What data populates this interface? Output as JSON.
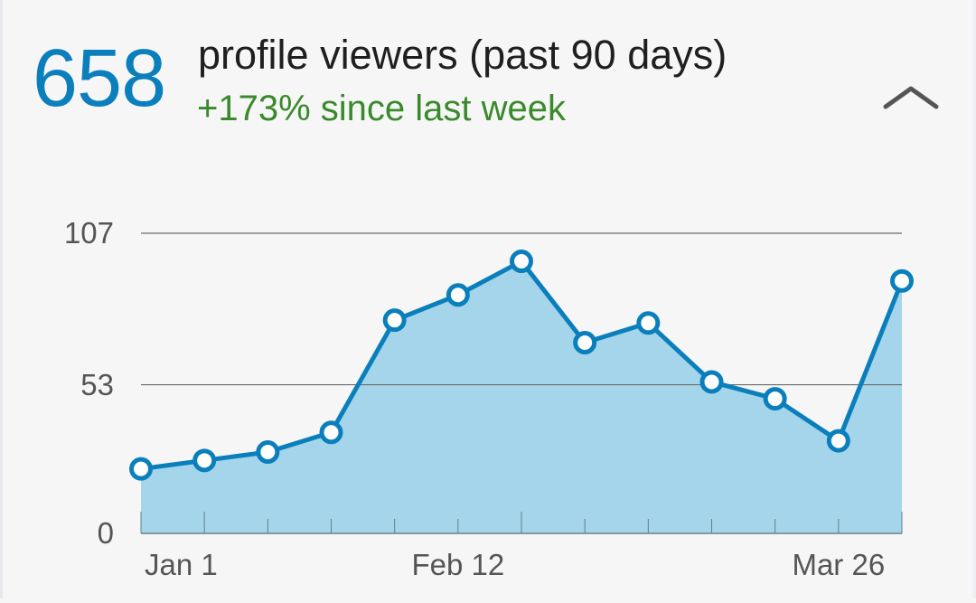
{
  "header": {
    "count": "658",
    "title": "profile viewers (past 90 days)",
    "change": "+173% since last week",
    "collapse_icon": "chevron-up-icon"
  },
  "colors": {
    "accent": "#0a7fbc",
    "positive": "#3a8a2b",
    "area_fill": "#a5d5ea",
    "gridline": "#6b6b6b"
  },
  "chart_data": {
    "type": "area",
    "title": "profile viewers (past 90 days)",
    "xlabel": "",
    "ylabel": "",
    "ylim": [
      0,
      107
    ],
    "yticks": [
      "0",
      "53",
      "107"
    ],
    "x_tick_labels": [
      {
        "index": 1,
        "label": "Jan 1"
      },
      {
        "index": 6,
        "label": "Feb 12"
      },
      {
        "index": 12,
        "label": "Mar 26"
      }
    ],
    "grid": true,
    "legend": null,
    "series": [
      {
        "name": "profile viewers",
        "values": [
          23,
          26,
          29,
          36,
          76,
          85,
          97,
          68,
          75,
          54,
          48,
          33,
          90
        ]
      }
    ]
  }
}
